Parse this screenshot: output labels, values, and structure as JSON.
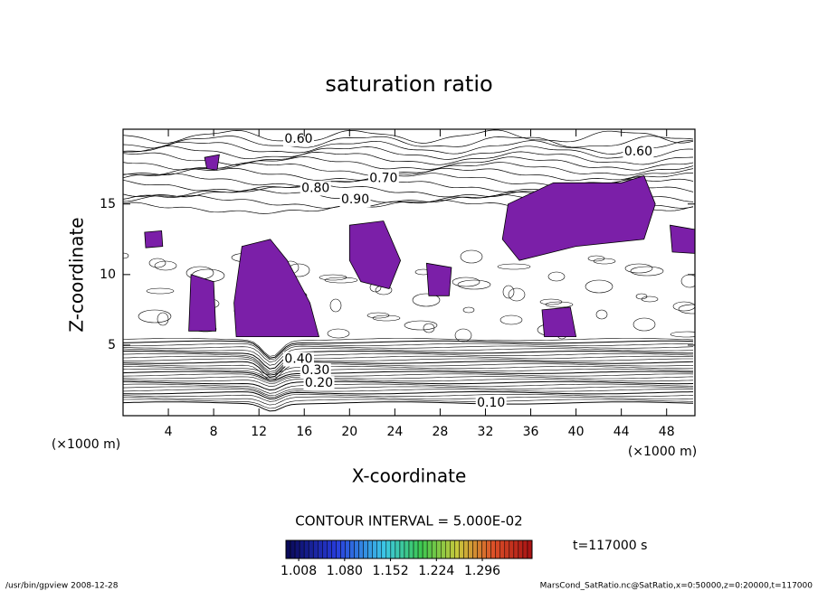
{
  "chart_data": {
    "type": "contour",
    "title": "saturation ratio",
    "x_label": "X-coordinate",
    "y_label": "Z-coordinate",
    "x_unit": "(×1000 m)",
    "y_unit": "(×1000 m)",
    "xlim": [
      0,
      50.5
    ],
    "ylim": [
      0,
      20.3
    ],
    "xticks": [
      4,
      8,
      12,
      16,
      20,
      24,
      28,
      32,
      36,
      40,
      44,
      48
    ],
    "yticks": [
      5,
      10,
      15
    ],
    "fill_color": "#7b1fa8",
    "regions": [
      [
        [
          34,
          15
        ],
        [
          38,
          16.5
        ],
        [
          44,
          16.5
        ],
        [
          46,
          17
        ],
        [
          47,
          15
        ],
        [
          46,
          12.5
        ],
        [
          40,
          12
        ],
        [
          35,
          11
        ],
        [
          33.5,
          12.5
        ]
      ],
      [
        [
          10.5,
          12
        ],
        [
          13,
          12.5
        ],
        [
          14.5,
          11
        ],
        [
          16.5,
          8
        ],
        [
          17.3,
          5.6
        ],
        [
          10,
          5.6
        ],
        [
          9.8,
          8
        ]
      ],
      [
        [
          20,
          13.5
        ],
        [
          23,
          13.8
        ],
        [
          24.5,
          11
        ],
        [
          23.5,
          9
        ],
        [
          21,
          9.5
        ],
        [
          20,
          11
        ]
      ],
      [
        [
          6,
          10
        ],
        [
          8,
          9.5
        ],
        [
          8.2,
          6
        ],
        [
          5.8,
          6
        ]
      ],
      [
        [
          26.8,
          10.8
        ],
        [
          29,
          10.5
        ],
        [
          28.8,
          8.5
        ],
        [
          27,
          8.5
        ]
      ],
      [
        [
          37,
          7.5
        ],
        [
          39.5,
          7.7
        ],
        [
          40,
          5.6
        ],
        [
          37.2,
          5.6
        ]
      ],
      [
        [
          1.9,
          13
        ],
        [
          3.4,
          13.1
        ],
        [
          3.5,
          12
        ],
        [
          2,
          11.9
        ]
      ],
      [
        [
          48.3,
          13.5
        ],
        [
          50.5,
          13.2
        ],
        [
          50.5,
          11.5
        ],
        [
          48.5,
          11.6
        ]
      ],
      [
        [
          7.2,
          18.3
        ],
        [
          8.5,
          18.5
        ],
        [
          8.3,
          17.4
        ],
        [
          7.4,
          17.5
        ]
      ]
    ],
    "contour_labels": [
      {
        "text": "0.60",
        "x": 15.5,
        "z": 19.6
      },
      {
        "text": "0.60",
        "x": 45.5,
        "z": 18.7
      },
      {
        "text": "0.70",
        "x": 23,
        "z": 16.8
      },
      {
        "text": "0.80",
        "x": 17,
        "z": 16.1
      },
      {
        "text": "0.90",
        "x": 20.5,
        "z": 15.3
      },
      {
        "text": "0.40",
        "x": 15.5,
        "z": 4.0
      },
      {
        "text": "0.30",
        "x": 17,
        "z": 3.2
      },
      {
        "text": "0.20",
        "x": 17.3,
        "z": 2.3
      },
      {
        "text": "0.10",
        "x": 32.5,
        "z": 0.9
      }
    ],
    "contour_interval": "CONTOUR INTERVAL = 5.000E-02",
    "time_label": "t=117000 s",
    "colorbar": {
      "clim": [
        0.988,
        1.374
      ],
      "ticks": [
        {
          "value": 1.008,
          "label": "1.008"
        },
        {
          "value": 1.08,
          "label": "1.080"
        },
        {
          "value": 1.152,
          "label": "1.152"
        },
        {
          "value": 1.224,
          "label": "1.224"
        },
        {
          "value": 1.296,
          "label": "1.296"
        }
      ]
    },
    "footer_left": "/usr/bin/gpview  2008-12-28",
    "footer_right": "MarsCond_SatRatio.nc@SatRatio,x=0:50000,z=0:20000,t=117000"
  }
}
